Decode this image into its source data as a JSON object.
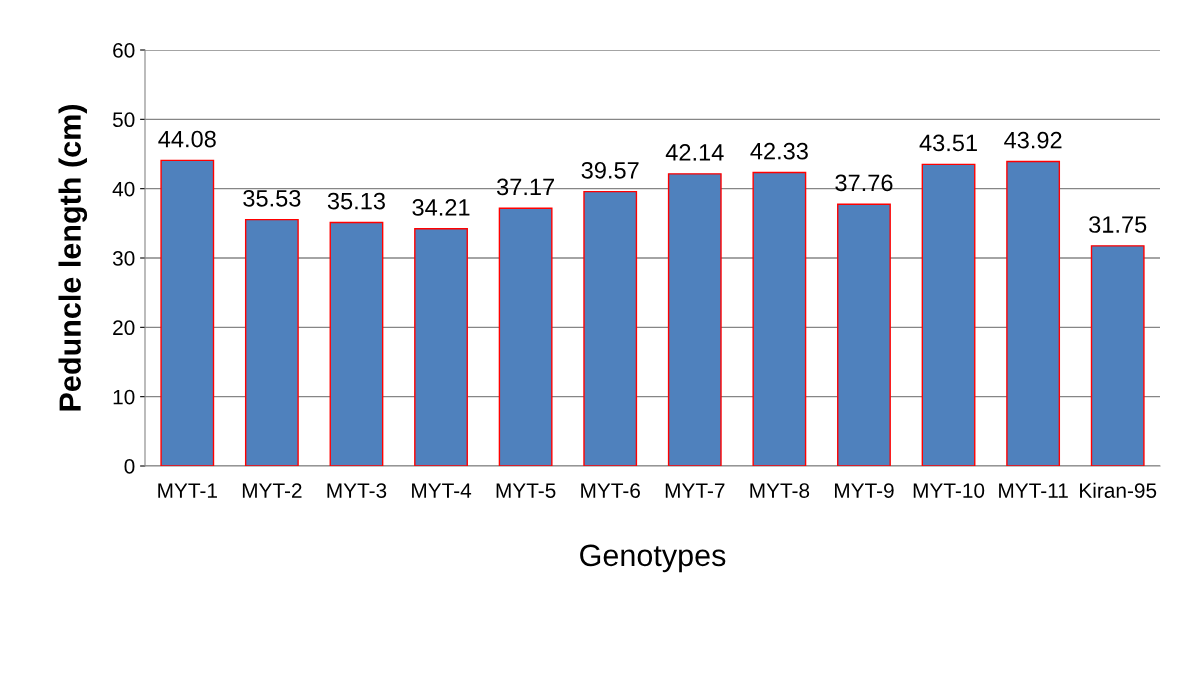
{
  "chart_data": {
    "type": "bar",
    "categories": [
      "MYT-1",
      "MYT-2",
      "MYT-3",
      "MYT-4",
      "MYT-5",
      "MYT-6",
      "MYT-7",
      "MYT-8",
      "MYT-9",
      "MYT-10",
      "MYT-11",
      "Kiran-95"
    ],
    "values": [
      44.08,
      35.53,
      35.13,
      34.21,
      37.17,
      39.57,
      42.14,
      42.33,
      37.76,
      43.51,
      43.92,
      31.75
    ],
    "color": "#4f81bd",
    "xlabel": "Genotypes",
    "ylabel": "Peduncle length (cm)",
    "ylim": [
      0,
      60
    ],
    "yticks": [
      0,
      10,
      20,
      30,
      40,
      50,
      60
    ],
    "grid": "y",
    "data_labels": true
  }
}
